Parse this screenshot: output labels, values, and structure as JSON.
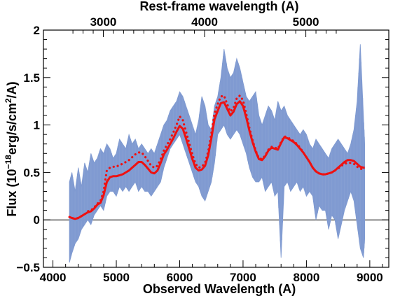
{
  "chart_data": {
    "type": "line",
    "title": "",
    "xlabel": "Observed Wavelength (A)",
    "ylabel": "Flux (10^-18 erg/s/cm^2/A)",
    "ylabel_parts": {
      "prefix": "Flux (10",
      "exp1": "−18",
      "mid": "erg/s/cm",
      "exp2": "2",
      "suffix": "/A)"
    },
    "top_xlabel": "Rest-frame wavelength (A)",
    "xlim": [
      3850,
      9300
    ],
    "ylim": [
      -0.5,
      2.0
    ],
    "x_ticks": [
      {
        "value": 4000,
        "label": "4000"
      },
      {
        "value": 5000,
        "label": "5000"
      },
      {
        "value": 6000,
        "label": "6000"
      },
      {
        "value": 7000,
        "label": "7000"
      },
      {
        "value": 8000,
        "label": "8000"
      },
      {
        "value": 9000,
        "label": "9000"
      }
    ],
    "y_ticks": [
      {
        "value": -0.5,
        "label": "−0.5"
      },
      {
        "value": 0,
        "label": "0"
      },
      {
        "value": 0.5,
        "label": "0.5"
      },
      {
        "value": 1,
        "label": "1"
      },
      {
        "value": 1.5,
        "label": "1.5"
      },
      {
        "value": 2,
        "label": "2"
      }
    ],
    "top_ticks": [
      {
        "value": 4795,
        "label": "3000"
      },
      {
        "value": 6393,
        "label": "4000"
      },
      {
        "value": 7991,
        "label": "5000"
      }
    ],
    "zero_line": 0,
    "colors": {
      "spectrum": "#7f9ad1",
      "model": "#ee1111",
      "zero_line": "#000000"
    },
    "series": [
      {
        "style": "band",
        "x": [
          4260,
          4300,
          4350,
          4400,
          4450,
          4500,
          4550,
          4600,
          4650,
          4700,
          4750,
          4800,
          4850,
          4900,
          4950,
          5000,
          5050,
          5100,
          5150,
          5200,
          5250,
          5300,
          5350,
          5400,
          5450,
          5500,
          5550,
          5600,
          5650,
          5700,
          5750,
          5800,
          5850,
          5900,
          5950,
          6000,
          6050,
          6100,
          6150,
          6200,
          6250,
          6300,
          6350,
          6400,
          6450,
          6500,
          6550,
          6600,
          6650,
          6700,
          6750,
          6800,
          6850,
          6900,
          6950,
          7000,
          7050,
          7100,
          7150,
          7200,
          7250,
          7300,
          7350,
          7400,
          7450,
          7500,
          7550,
          7600,
          7650,
          7700,
          7750,
          7800,
          7850,
          7900,
          7950,
          8000,
          8050,
          8100,
          8150,
          8200,
          8250,
          8300,
          8350,
          8400,
          8450,
          8500,
          8550,
          8600,
          8650,
          8700,
          8750,
          8800,
          8850,
          8900,
          8920
        ],
        "upper": [
          0.4,
          0.5,
          0.3,
          0.55,
          0.35,
          0.6,
          0.5,
          0.7,
          0.6,
          0.65,
          0.75,
          0.7,
          0.8,
          0.75,
          0.65,
          0.7,
          0.85,
          0.8,
          0.75,
          0.9,
          0.8,
          0.85,
          0.75,
          0.8,
          0.75,
          0.7,
          0.75,
          0.7,
          0.8,
          0.9,
          1.0,
          1.05,
          1.15,
          1.2,
          1.25,
          1.35,
          1.3,
          1.2,
          1.1,
          1.0,
          0.9,
          1.05,
          1.3,
          1.2,
          1.0,
          0.95,
          1.2,
          1.3,
          1.5,
          1.8,
          1.6,
          1.5,
          1.55,
          1.7,
          1.6,
          1.45,
          1.3,
          1.25,
          1.3,
          1.35,
          1.1,
          1.0,
          1.1,
          1.2,
          1.15,
          1.05,
          1.25,
          1.15,
          1.2,
          1.1,
          1.05,
          1.0,
          0.95,
          0.9,
          0.95,
          0.9,
          0.8,
          0.75,
          0.85,
          0.8,
          0.75,
          0.7,
          0.65,
          0.75,
          0.8,
          0.85,
          0.8,
          0.75,
          0.7,
          0.8,
          0.95,
          1.25,
          1.85,
          1.1,
          0.8
        ],
        "lower": [
          -0.45,
          -0.35,
          -0.25,
          -0.2,
          -0.1,
          -0.05,
          0.0,
          -0.05,
          0.05,
          0.1,
          0.15,
          0.1,
          0.25,
          0.3,
          0.3,
          0.25,
          0.35,
          0.3,
          0.35,
          0.3,
          0.35,
          0.4,
          0.3,
          0.35,
          0.3,
          0.3,
          0.25,
          0.3,
          0.35,
          0.4,
          0.55,
          0.65,
          0.75,
          0.8,
          0.85,
          0.9,
          0.8,
          0.7,
          0.6,
          0.5,
          0.4,
          0.35,
          0.25,
          0.2,
          0.3,
          0.4,
          0.6,
          0.9,
          0.95,
          1.0,
          0.9,
          0.85,
          0.9,
          0.95,
          0.9,
          0.8,
          0.7,
          0.55,
          0.45,
          0.4,
          0.4,
          0.45,
          0.3,
          0.35,
          0.4,
          0.25,
          0.3,
          -0.4,
          0.35,
          0.4,
          0.3,
          0.35,
          0.4,
          0.3,
          0.35,
          0.25,
          0.3,
          0.25,
          0.0,
          0.15,
          0.1,
          0.1,
          -0.1,
          0.05,
          0.0,
          -0.2,
          -0.05,
          0.1,
          0.2,
          0.3,
          0.2,
          -0.05,
          -0.3,
          -0.4,
          -0.2
        ]
      },
      {
        "style": "solid",
        "x": [
          4260,
          4300,
          4350,
          4400,
          4450,
          4500,
          4550,
          4600,
          4650,
          4700,
          4750,
          4800,
          4850,
          4900,
          4950,
          5000,
          5050,
          5100,
          5150,
          5200,
          5250,
          5300,
          5350,
          5400,
          5450,
          5500,
          5550,
          5600,
          5650,
          5700,
          5750,
          5800,
          5850,
          5900,
          5950,
          6000,
          6050,
          6100,
          6150,
          6200,
          6250,
          6300,
          6350,
          6400,
          6450,
          6500,
          6550,
          6600,
          6650,
          6700,
          6750,
          6800,
          6850,
          6900,
          6950,
          7000,
          7050,
          7100,
          7150,
          7200,
          7250,
          7300,
          7350,
          7400,
          7450,
          7500,
          7550,
          7600,
          7650,
          7700,
          7750,
          7800,
          7850,
          7900,
          7950,
          8000,
          8050,
          8100,
          8150,
          8200,
          8250,
          8300,
          8350,
          8400,
          8450,
          8500,
          8550,
          8600,
          8650,
          8700,
          8750,
          8800,
          8850,
          8900,
          8920
        ],
        "y": [
          0.03,
          0.02,
          0.01,
          0.02,
          0.04,
          0.06,
          0.08,
          0.09,
          0.12,
          0.16,
          0.18,
          0.26,
          0.4,
          0.45,
          0.46,
          0.46,
          0.47,
          0.48,
          0.5,
          0.52,
          0.55,
          0.58,
          0.61,
          0.61,
          0.58,
          0.54,
          0.5,
          0.49,
          0.52,
          0.6,
          0.69,
          0.74,
          0.8,
          0.86,
          0.93,
          0.99,
          0.96,
          0.86,
          0.75,
          0.64,
          0.55,
          0.52,
          0.53,
          0.57,
          0.68,
          0.86,
          1.06,
          1.15,
          1.23,
          1.24,
          1.17,
          1.1,
          1.14,
          1.22,
          1.25,
          1.2,
          1.08,
          0.94,
          0.82,
          0.72,
          0.64,
          0.63,
          0.67,
          0.73,
          0.76,
          0.75,
          0.74,
          0.81,
          0.87,
          0.86,
          0.84,
          0.82,
          0.79,
          0.75,
          0.71,
          0.66,
          0.61,
          0.55,
          0.51,
          0.49,
          0.48,
          0.48,
          0.49,
          0.5,
          0.52,
          0.55,
          0.58,
          0.61,
          0.63,
          0.63,
          0.62,
          0.59,
          0.56,
          0.55,
          0.55
        ]
      },
      {
        "style": "dotted",
        "x": [
          4260,
          4300,
          4350,
          4400,
          4450,
          4500,
          4550,
          4600,
          4650,
          4700,
          4750,
          4800,
          4850,
          4900,
          4950,
          5000,
          5050,
          5100,
          5150,
          5200,
          5250,
          5300,
          5350,
          5400,
          5450,
          5500,
          5550,
          5600,
          5650,
          5700,
          5750,
          5800,
          5850,
          5900,
          5950,
          6000,
          6050,
          6100,
          6150,
          6200,
          6250,
          6300,
          6350,
          6400,
          6450,
          6500,
          6550,
          6600,
          6650,
          6700,
          6750,
          6800,
          6850,
          6900,
          6950,
          7000,
          7050,
          7100,
          7150,
          7200,
          7250,
          7300,
          7350,
          7400,
          7450,
          7500,
          7550,
          7600,
          7650,
          7700,
          7750,
          7800,
          7850,
          7900,
          7950,
          8000,
          8050,
          8100,
          8150,
          8200,
          8250,
          8300,
          8350,
          8400,
          8450,
          8500,
          8550,
          8600,
          8650,
          8700,
          8750,
          8800,
          8850,
          8900,
          8920
        ],
        "y": [
          0.03,
          0.02,
          0.01,
          0.02,
          0.04,
          0.06,
          0.09,
          0.1,
          0.13,
          0.17,
          0.2,
          0.3,
          0.52,
          0.55,
          0.56,
          0.56,
          0.58,
          0.59,
          0.61,
          0.63,
          0.66,
          0.69,
          0.71,
          0.71,
          0.67,
          0.62,
          0.57,
          0.55,
          0.57,
          0.64,
          0.73,
          0.79,
          0.85,
          0.92,
          1.0,
          1.09,
          1.05,
          0.93,
          0.81,
          0.69,
          0.59,
          0.55,
          0.56,
          0.6,
          0.72,
          0.91,
          1.12,
          1.22,
          1.3,
          1.31,
          1.22,
          1.14,
          1.18,
          1.28,
          1.31,
          1.26,
          1.12,
          0.97,
          0.84,
          0.73,
          0.65,
          0.64,
          0.68,
          0.74,
          0.77,
          0.76,
          0.75,
          0.82,
          0.88,
          0.87,
          0.85,
          0.83,
          0.8,
          0.76,
          0.71,
          0.66,
          0.61,
          0.55,
          0.51,
          0.49,
          0.48,
          0.48,
          0.49,
          0.5,
          0.52,
          0.54,
          0.57,
          0.59,
          0.6,
          0.6,
          0.59,
          0.56,
          0.54,
          0.53,
          0.53
        ]
      }
    ]
  }
}
